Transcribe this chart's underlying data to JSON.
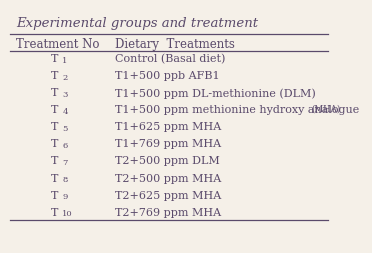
{
  "title": "Experimental groups and treatment",
  "col1_header": "Treatment No",
  "col2_header": "Dietary  Treatments",
  "rows": [
    {
      "no": "T",
      "sub": "1",
      "treatment": "Control (Basal diet)"
    },
    {
      "no": "T",
      "sub": "2",
      "treatment": "T1+500 ppb AFB1"
    },
    {
      "no": "T",
      "sub": "3",
      "treatment": "T1+500 ppm DL-methionine (DLM)"
    },
    {
      "no": "T",
      "sub": "4",
      "treatment": "T1+500 ppm methionine hydroxy analogue (MHA)"
    },
    {
      "no": "T",
      "sub": "5",
      "treatment": "T1+625 ppm MHA"
    },
    {
      "no": "T",
      "sub": "6",
      "treatment": "T1+769 ppm MHA"
    },
    {
      "no": "T",
      "sub": "7",
      "treatment": "T2+500 ppm DLM"
    },
    {
      "no": "T",
      "sub": "8",
      "treatment": "T2+500 ppm MHA"
    },
    {
      "no": "T",
      "sub": "9",
      "treatment": "T2+625 ppm MHA"
    },
    {
      "no": "T",
      "sub": "10",
      "treatment": "T2+769 ppm MHA"
    }
  ],
  "text_color": "#5a4a6b",
  "bg_color": "#f5f0e8",
  "line_color": "#5a4a6b",
  "title_fontsize": 9.5,
  "header_fontsize": 8.5,
  "row_fontsize": 8.0
}
